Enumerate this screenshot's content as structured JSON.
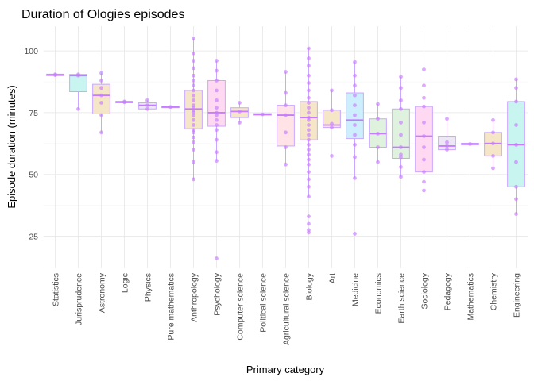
{
  "chart_data": {
    "type": "boxplot",
    "title": "Duration of Ologies episodes",
    "xlabel": "Primary category",
    "ylabel": "Episode duration (minutes)",
    "ylim": [
      12,
      110
    ],
    "yticks": [
      25,
      50,
      75,
      100
    ],
    "grid": true,
    "legend": "none",
    "colors": {
      "point": "#c77cff",
      "median": "#c77cff",
      "box_outline": "#c9a8ff",
      "grid_major": "#ebebeb",
      "grid_minor": "#f5f5f5"
    },
    "categories": [
      {
        "name": "Statistics",
        "fill": "#ffe3e6",
        "q1": 90.0,
        "median": 90.3,
        "q3": 90.6,
        "whisker_low": 90.0,
        "whisker_high": 90.6,
        "points": [
          90.2,
          90.5
        ]
      },
      {
        "name": "Jurisprudence",
        "fill": "#c8f5f0",
        "q1": 83.5,
        "median": 90.0,
        "q3": 90.5,
        "whisker_low": 76.5,
        "whisker_high": 90.5,
        "points": [
          76.5,
          90.0,
          90.5
        ]
      },
      {
        "name": "Astronomy",
        "fill": "#f4e6c6",
        "q1": 74.5,
        "median": 82.0,
        "q3": 86.5,
        "whisker_low": 67.0,
        "whisker_high": 91.0,
        "points": [
          67.0,
          74.0,
          79.0,
          82.0,
          85.0,
          88.0,
          91.0
        ]
      },
      {
        "name": "Logic",
        "fill": "#dff2dd",
        "q1": 79.0,
        "median": 79.3,
        "q3": 79.6,
        "whisker_low": 79.0,
        "whisker_high": 79.6,
        "points": [
          79.2,
          79.5
        ]
      },
      {
        "name": "Physics",
        "fill": "#ece6f5",
        "q1": 76.5,
        "median": 78.0,
        "q3": 79.0,
        "whisker_low": 76.5,
        "whisker_high": 80.0,
        "points": [
          76.5,
          78.0,
          80.0
        ]
      },
      {
        "name": "Pure mathematics",
        "fill": "#ffe3e6",
        "q1": 77.0,
        "median": 77.3,
        "q3": 77.6,
        "whisker_low": 77.0,
        "whisker_high": 77.6,
        "points": [
          77.3
        ]
      },
      {
        "name": "Anthropology",
        "fill": "#f4e6c6",
        "q1": 68.5,
        "median": 76.5,
        "q3": 84.0,
        "whisker_low": 48.0,
        "whisker_high": 105.0,
        "points": [
          48.0,
          55.0,
          60.0,
          63.0,
          65.0,
          67.0,
          68.0,
          70.0,
          72.0,
          74.0,
          75.0,
          76.0,
          77.0,
          78.0,
          80.0,
          82.0,
          84.0,
          86.0,
          88.0,
          90.0,
          93.0,
          96.0,
          99.0,
          105.0
        ]
      },
      {
        "name": "Psychology",
        "fill": "#ffd9f2",
        "q1": 69.5,
        "median": 75.0,
        "q3": 88.0,
        "whisker_low": 55.5,
        "whisker_high": 96.0,
        "points": [
          16.0,
          55.5,
          59.0,
          64.0,
          68.0,
          70.0,
          72.0,
          74.0,
          75.0,
          77.0,
          80.0,
          84.0,
          88.0,
          92.0,
          96.0
        ]
      },
      {
        "name": "Computer science",
        "fill": "#f4e6c6",
        "q1": 73.0,
        "median": 75.5,
        "q3": 77.0,
        "whisker_low": 71.0,
        "whisker_high": 79.0,
        "points": [
          71.0,
          75.5,
          79.0
        ]
      },
      {
        "name": "Political science",
        "fill": "#dff2dd",
        "q1": 74.0,
        "median": 74.3,
        "q3": 74.6,
        "whisker_low": 74.0,
        "whisker_high": 74.6,
        "points": [
          74.3
        ]
      },
      {
        "name": "Agricultural science",
        "fill": "#ffe3e6",
        "q1": 61.5,
        "median": 74.0,
        "q3": 78.0,
        "whisker_low": 54.0,
        "whisker_high": 91.5,
        "points": [
          54.0,
          61.0,
          67.0,
          74.0,
          78.0,
          83.0,
          91.5
        ]
      },
      {
        "name": "Biology",
        "fill": "#f4e6c6",
        "q1": 64.0,
        "median": 73.0,
        "q3": 79.5,
        "whisker_low": 41.0,
        "whisker_high": 101.0,
        "points": [
          26.5,
          27.5,
          30.0,
          33.0,
          41.0,
          45.0,
          48.0,
          51.0,
          54.0,
          56.0,
          58.0,
          60.0,
          62.0,
          64.0,
          66.0,
          68.0,
          70.0,
          72.0,
          73.0,
          75.0,
          77.0,
          79.0,
          81.0,
          84.0,
          87.0,
          90.0,
          94.0,
          97.0,
          101.0
        ]
      },
      {
        "name": "Art",
        "fill": "#f4e6c6",
        "q1": 69.0,
        "median": 70.0,
        "q3": 76.0,
        "whisker_low": 69.0,
        "whisker_high": 84.0,
        "points": [
          57.5,
          69.0,
          70.5,
          76.0,
          84.0
        ]
      },
      {
        "name": "Medicine",
        "fill": "#cdeefc",
        "q1": 64.5,
        "median": 72.0,
        "q3": 83.0,
        "whisker_low": 48.5,
        "whisker_high": 95.5,
        "points": [
          26.0,
          48.5,
          57.0,
          62.0,
          66.0,
          70.0,
          74.0,
          78.0,
          82.0,
          86.0,
          90.0,
          95.5
        ]
      },
      {
        "name": "Economics",
        "fill": "#dff2dd",
        "q1": 61.0,
        "median": 66.5,
        "q3": 72.5,
        "whisker_low": 55.0,
        "whisker_high": 78.5,
        "points": [
          55.0,
          61.0,
          66.5,
          72.5,
          78.5
        ]
      },
      {
        "name": "Earth science",
        "fill": "#dff2dd",
        "q1": 56.5,
        "median": 61.0,
        "q3": 76.5,
        "whisker_low": 49.0,
        "whisker_high": 89.5,
        "points": [
          49.0,
          53.0,
          57.0,
          58.0,
          61.0,
          66.0,
          71.0,
          76.5,
          80.0,
          85.0,
          89.5
        ]
      },
      {
        "name": "Sociology",
        "fill": "#ffd9f2",
        "q1": 51.0,
        "median": 65.5,
        "q3": 77.5,
        "whisker_low": 43.5,
        "whisker_high": 92.5,
        "points": [
          43.5,
          47.0,
          51.0,
          56.0,
          61.0,
          65.5,
          71.0,
          77.5,
          81.0,
          86.0,
          92.5
        ]
      },
      {
        "name": "Pedagogy",
        "fill": "#ece6f5",
        "q1": 60.0,
        "median": 61.5,
        "q3": 65.5,
        "whisker_low": 60.0,
        "whisker_high": 72.5,
        "points": [
          60.0,
          61.5,
          63.0,
          72.5
        ]
      },
      {
        "name": "Mathematics",
        "fill": "#ece6f5",
        "q1": 62.0,
        "median": 62.3,
        "q3": 62.6,
        "whisker_low": 62.0,
        "whisker_high": 62.6,
        "points": [
          62.3
        ]
      },
      {
        "name": "Chemistry",
        "fill": "#f4e6c6",
        "q1": 57.5,
        "median": 62.5,
        "q3": 67.0,
        "whisker_low": 52.5,
        "whisker_high": 72.0,
        "points": [
          52.5,
          57.5,
          62.5,
          67.0,
          72.0
        ]
      },
      {
        "name": "Engineering",
        "fill": "#c8f5f0",
        "q1": 45.0,
        "median": 62.0,
        "q3": 79.5,
        "whisker_low": 34.0,
        "whisker_high": 88.5,
        "points": [
          34.0,
          40.0,
          45.0,
          55.0,
          62.0,
          70.0,
          79.5,
          85.0,
          88.5
        ]
      }
    ]
  }
}
